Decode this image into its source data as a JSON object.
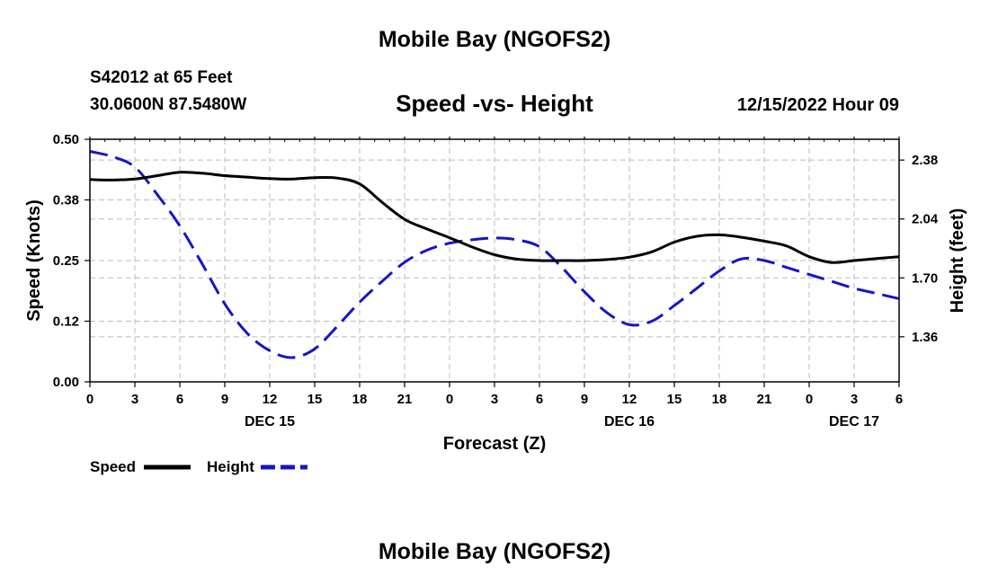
{
  "header": {
    "title": "Mobile Bay (NGOFS2)",
    "station": "S42012 at 65 Feet",
    "coords": "30.0600N  87.5480W",
    "run_time": "12/15/2022 Hour 09"
  },
  "footer": {
    "title": "Mobile Bay (NGOFS2)"
  },
  "colors": {
    "speed": "#000000",
    "height": "#1515c8",
    "grid": "#bbbbbb"
  },
  "chart_data": {
    "type": "line",
    "title": "Speed -vs- Height",
    "xlabel": "Forecast (Z)",
    "ylabel_left": "Speed (Knots)",
    "ylabel_right": "Height (feet)",
    "x_unit": "forecast hour",
    "xlim": [
      0,
      54
    ],
    "ylim_left": [
      0,
      0.5
    ],
    "ylim_right": [
      1.1,
      2.5
    ],
    "yticks_left": [
      "0.00",
      "0.12",
      "0.25",
      "0.38",
      "0.50"
    ],
    "yticks_right": [
      "1.36",
      "1.70",
      "2.04",
      "2.38"
    ],
    "xticks": [
      "0",
      "3",
      "6",
      "9",
      "12",
      "15",
      "18",
      "21",
      "0",
      "3",
      "6",
      "9",
      "12",
      "15",
      "18",
      "21",
      "0",
      "3",
      "6"
    ],
    "date_labels": [
      {
        "label": "DEC 15",
        "hour": 12
      },
      {
        "label": "DEC 16",
        "hour": 36
      },
      {
        "label": "DEC 17",
        "hour": 51
      }
    ],
    "grid": true,
    "legend_position": "bottom-left",
    "series": [
      {
        "name": "Speed",
        "axis": "left",
        "style": "solid",
        "x": [
          0,
          1.5,
          3,
          4.5,
          6,
          7.5,
          9,
          10.5,
          12,
          13.5,
          15,
          16.5,
          18,
          19.5,
          21,
          22.5,
          24,
          25.5,
          27,
          28.5,
          30,
          31.5,
          33,
          34.5,
          36,
          37.5,
          39,
          40.5,
          42,
          43.5,
          45,
          46.5,
          48,
          49.5,
          51,
          52.5,
          54
        ],
        "values": [
          0.417,
          0.416,
          0.418,
          0.425,
          0.432,
          0.43,
          0.425,
          0.422,
          0.419,
          0.418,
          0.421,
          0.42,
          0.408,
          0.37,
          0.335,
          0.315,
          0.297,
          0.278,
          0.262,
          0.253,
          0.25,
          0.25,
          0.25,
          0.252,
          0.257,
          0.268,
          0.288,
          0.3,
          0.303,
          0.298,
          0.29,
          0.28,
          0.258,
          0.246,
          0.25,
          0.254,
          0.258
        ]
      },
      {
        "name": "Height",
        "axis": "right",
        "style": "dashed",
        "x": [
          0,
          1.5,
          3,
          4.5,
          6,
          7.5,
          9,
          10.5,
          12,
          13.5,
          15,
          16.5,
          18,
          19.5,
          21,
          22.5,
          24,
          25.5,
          27,
          28.5,
          30,
          31.5,
          33,
          34.5,
          36,
          37.5,
          39,
          40.5,
          42,
          43.5,
          45,
          46.5,
          48,
          49.5,
          51,
          52.5,
          54
        ],
        "values": [
          2.43,
          2.4,
          2.34,
          2.18,
          2.0,
          1.78,
          1.55,
          1.38,
          1.28,
          1.24,
          1.29,
          1.42,
          1.56,
          1.68,
          1.79,
          1.86,
          1.9,
          1.92,
          1.93,
          1.92,
          1.88,
          1.76,
          1.62,
          1.5,
          1.43,
          1.45,
          1.54,
          1.64,
          1.74,
          1.81,
          1.8,
          1.76,
          1.72,
          1.68,
          1.64,
          1.61,
          1.58
        ]
      }
    ]
  }
}
